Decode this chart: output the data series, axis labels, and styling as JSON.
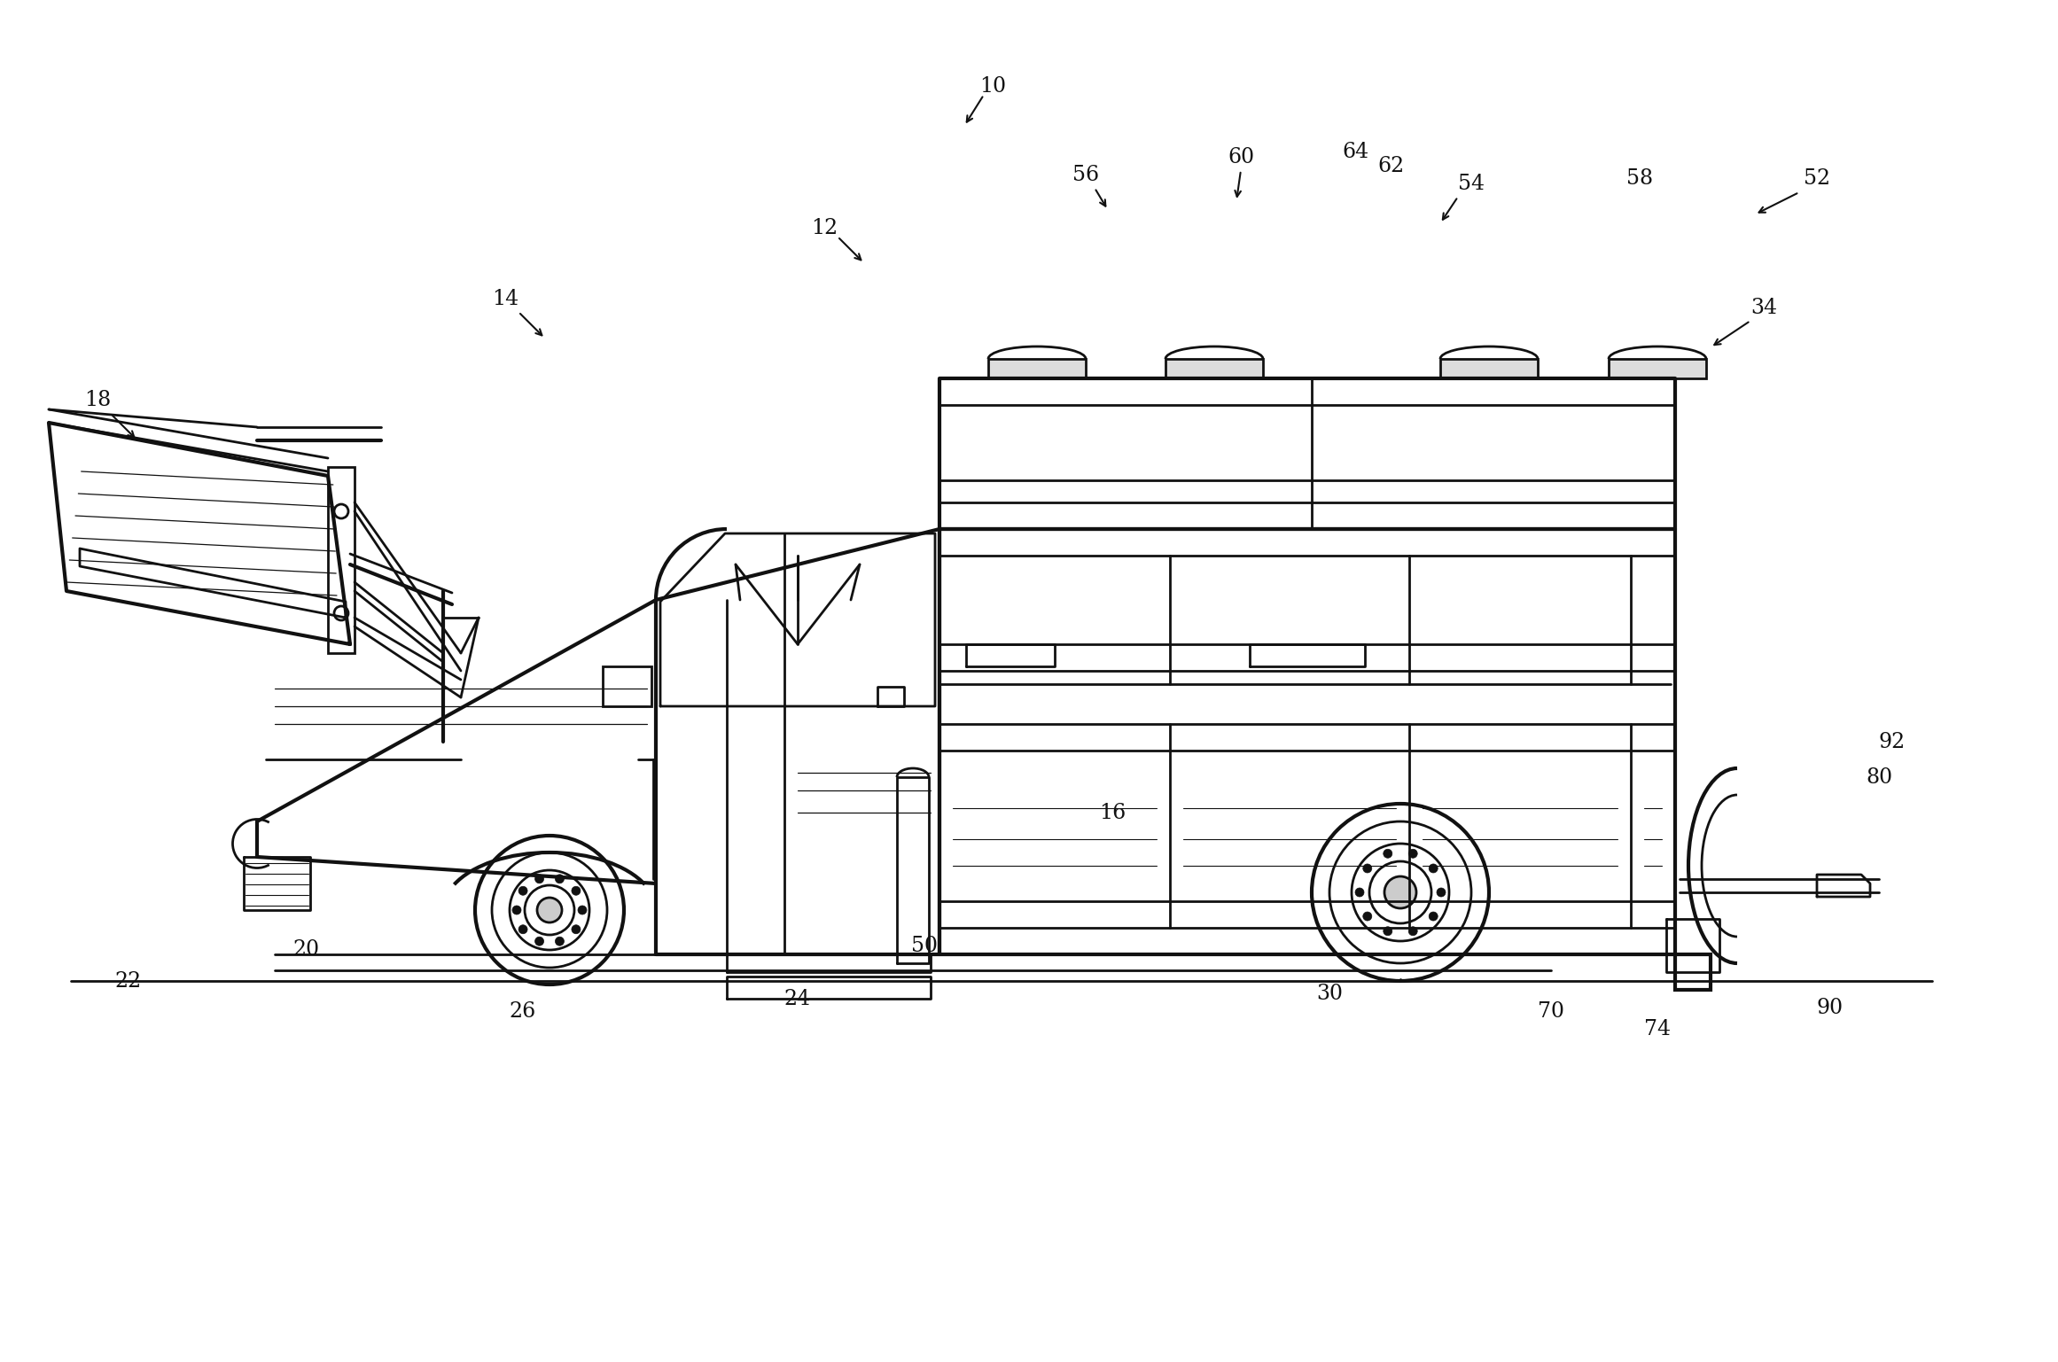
{
  "background_color": "#ffffff",
  "line_color": "#111111",
  "lw": 2.0,
  "tlw": 3.0,
  "fs": 15
}
